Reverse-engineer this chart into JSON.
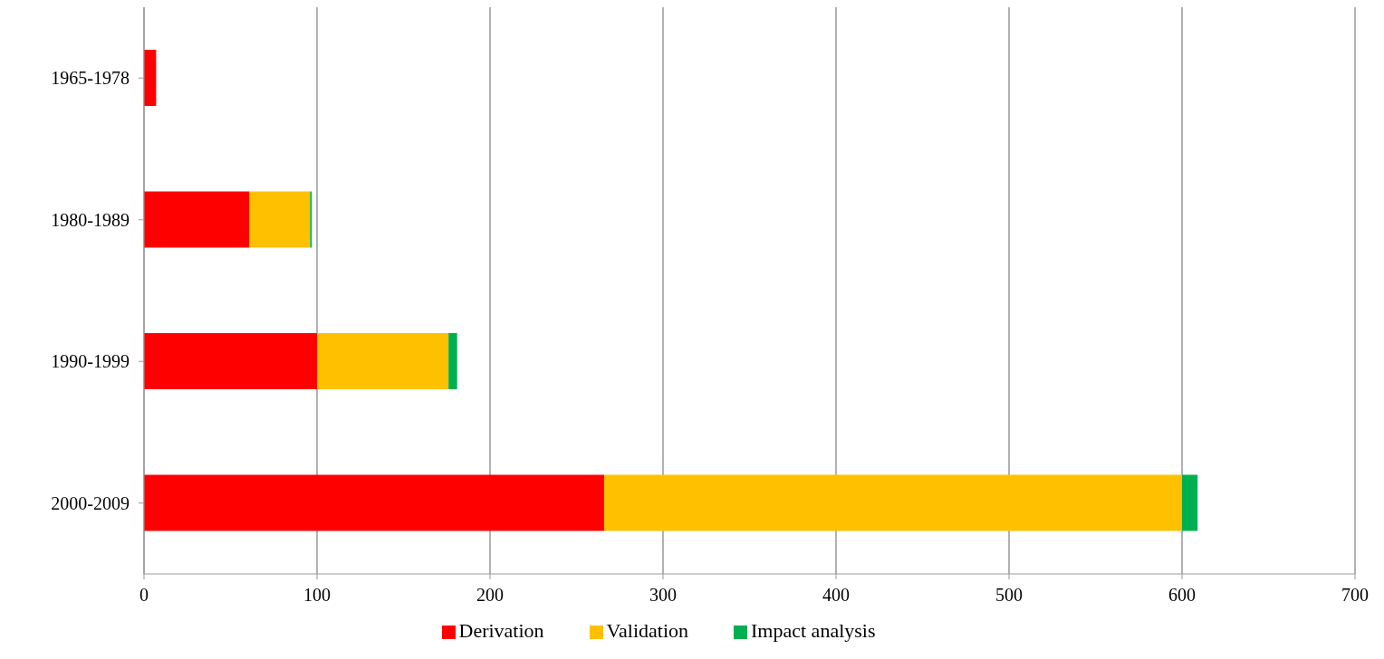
{
  "chart_data": {
    "type": "bar",
    "orientation": "horizontal",
    "stacked": true,
    "categories": [
      "1965-1978",
      "1980-1989",
      "1990-1999",
      "2000-2009"
    ],
    "series": [
      {
        "name": "Derivation",
        "color": "#ff0000",
        "values": [
          7,
          61,
          100,
          266
        ]
      },
      {
        "name": "Validation",
        "color": "#ffc000",
        "values": [
          0,
          35,
          76,
          334
        ]
      },
      {
        "name": "Impact analysis",
        "color": "#00b050",
        "values": [
          0,
          1,
          5,
          9
        ]
      }
    ],
    "xlim": [
      0,
      700
    ],
    "xticks": [
      0,
      100,
      200,
      300,
      400,
      500,
      600,
      700
    ],
    "grid": "x",
    "legend": "bottom"
  }
}
